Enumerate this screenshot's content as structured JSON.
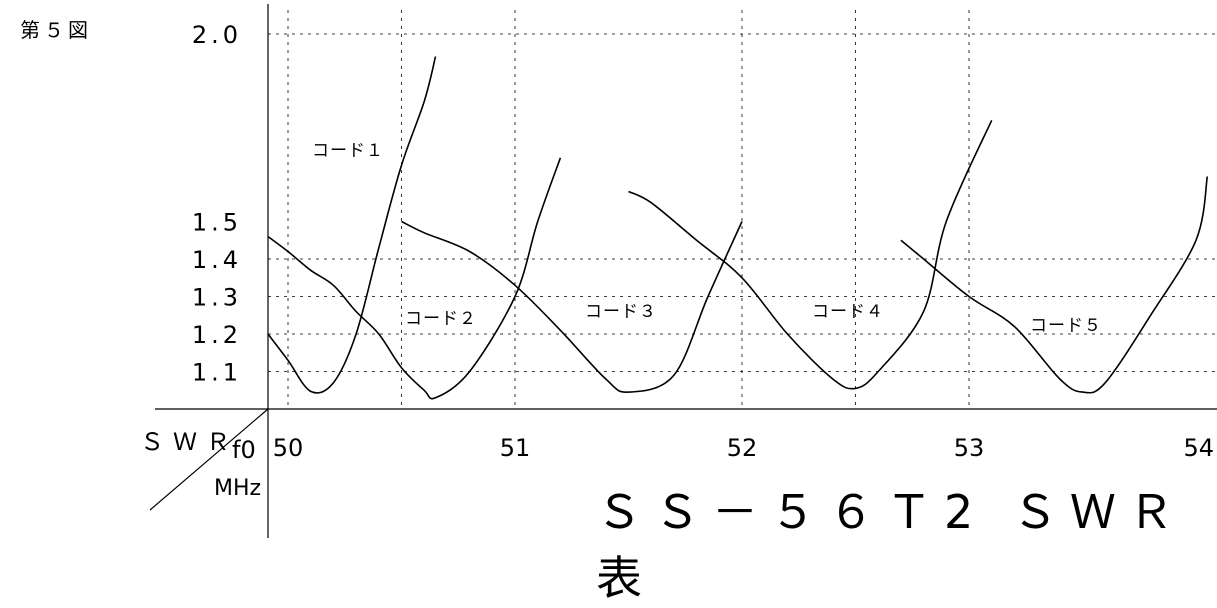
{
  "figure_label": "第５図",
  "title": "ＳＳ－５６Ｔ2 ＳＷＲ表",
  "corner": {
    "swr_label": "ＳＷＲ",
    "f0_label": "f0",
    "unit_label": "MHz"
  },
  "chart_data": {
    "type": "line",
    "title": "ＳＳ－５６Ｔ2 ＳＷＲ表",
    "xlabel": "f0 MHz",
    "ylabel": "ＳＷＲ",
    "xlim": [
      49.9,
      54.05
    ],
    "ylim": [
      1.0,
      2.1
    ],
    "x_ticks": [
      50,
      51,
      52,
      53,
      54
    ],
    "x_tick_labels": [
      "50",
      "51",
      "52",
      "53",
      "54"
    ],
    "y_ticks": [
      1.1,
      1.2,
      1.3,
      1.4,
      1.5,
      2.0
    ],
    "y_tick_labels": [
      "1.1",
      "1.2",
      "1.3",
      "1.4",
      "1.5",
      "2.0"
    ],
    "grid_x": [
      50,
      50.5,
      51,
      52,
      52.5,
      53
    ],
    "grid_y": [
      1.1,
      1.2,
      1.3,
      1.4,
      2.0
    ],
    "grid": "dashed",
    "series": [
      {
        "name": "コード１",
        "x": [
          49.9,
          50.0,
          50.1,
          50.2,
          50.3,
          50.4,
          50.5,
          50.6,
          50.65
        ],
        "y": [
          1.2,
          1.13,
          1.047,
          1.07,
          1.2,
          1.43,
          1.65,
          1.82,
          1.94
        ]
      },
      {
        "name": "コード２",
        "x": [
          49.9,
          50.0,
          50.1,
          50.2,
          50.3,
          50.4,
          50.5,
          50.6,
          50.65,
          50.8,
          51.0,
          51.1,
          51.2
        ],
        "y": [
          1.46,
          1.42,
          1.37,
          1.33,
          1.26,
          1.2,
          1.11,
          1.05,
          1.03,
          1.1,
          1.3,
          1.5,
          1.67
        ]
      },
      {
        "name": "コード３",
        "x": [
          50.5,
          50.6,
          50.8,
          51.0,
          51.2,
          51.4,
          51.5,
          51.7,
          51.85,
          52.0
        ],
        "y": [
          1.5,
          1.47,
          1.42,
          1.33,
          1.21,
          1.08,
          1.045,
          1.09,
          1.3,
          1.5
        ]
      },
      {
        "name": "コード４",
        "x": [
          51.5,
          51.6,
          51.8,
          52.0,
          52.2,
          52.4,
          52.5,
          52.6,
          52.8,
          52.9,
          53.1
        ],
        "y": [
          1.58,
          1.55,
          1.45,
          1.35,
          1.2,
          1.08,
          1.055,
          1.1,
          1.26,
          1.5,
          1.77
        ]
      },
      {
        "name": "コード５",
        "x": [
          52.7,
          52.8,
          53.0,
          53.2,
          53.4,
          53.5,
          53.6,
          53.8,
          54.0,
          54.05
        ],
        "y": [
          1.45,
          1.4,
          1.3,
          1.22,
          1.08,
          1.045,
          1.07,
          1.25,
          1.45,
          1.62
        ]
      }
    ]
  }
}
